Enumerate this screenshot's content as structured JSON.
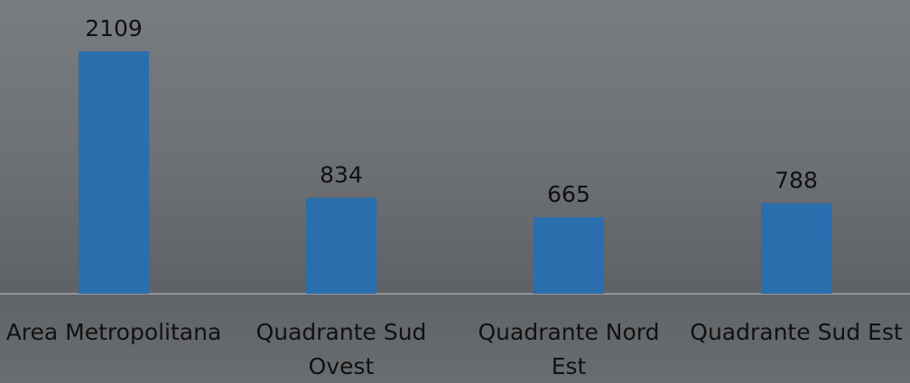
{
  "chart_data": {
    "type": "bar",
    "categories": [
      "Area Metropolitana",
      "Quadrante Sud Ovest",
      "Quadrante Nord Est",
      "Quadrante Sud Est"
    ],
    "values": [
      2109,
      834,
      665,
      788
    ],
    "color": "#2a6ead",
    "ylim": [
      0,
      2500
    ]
  }
}
